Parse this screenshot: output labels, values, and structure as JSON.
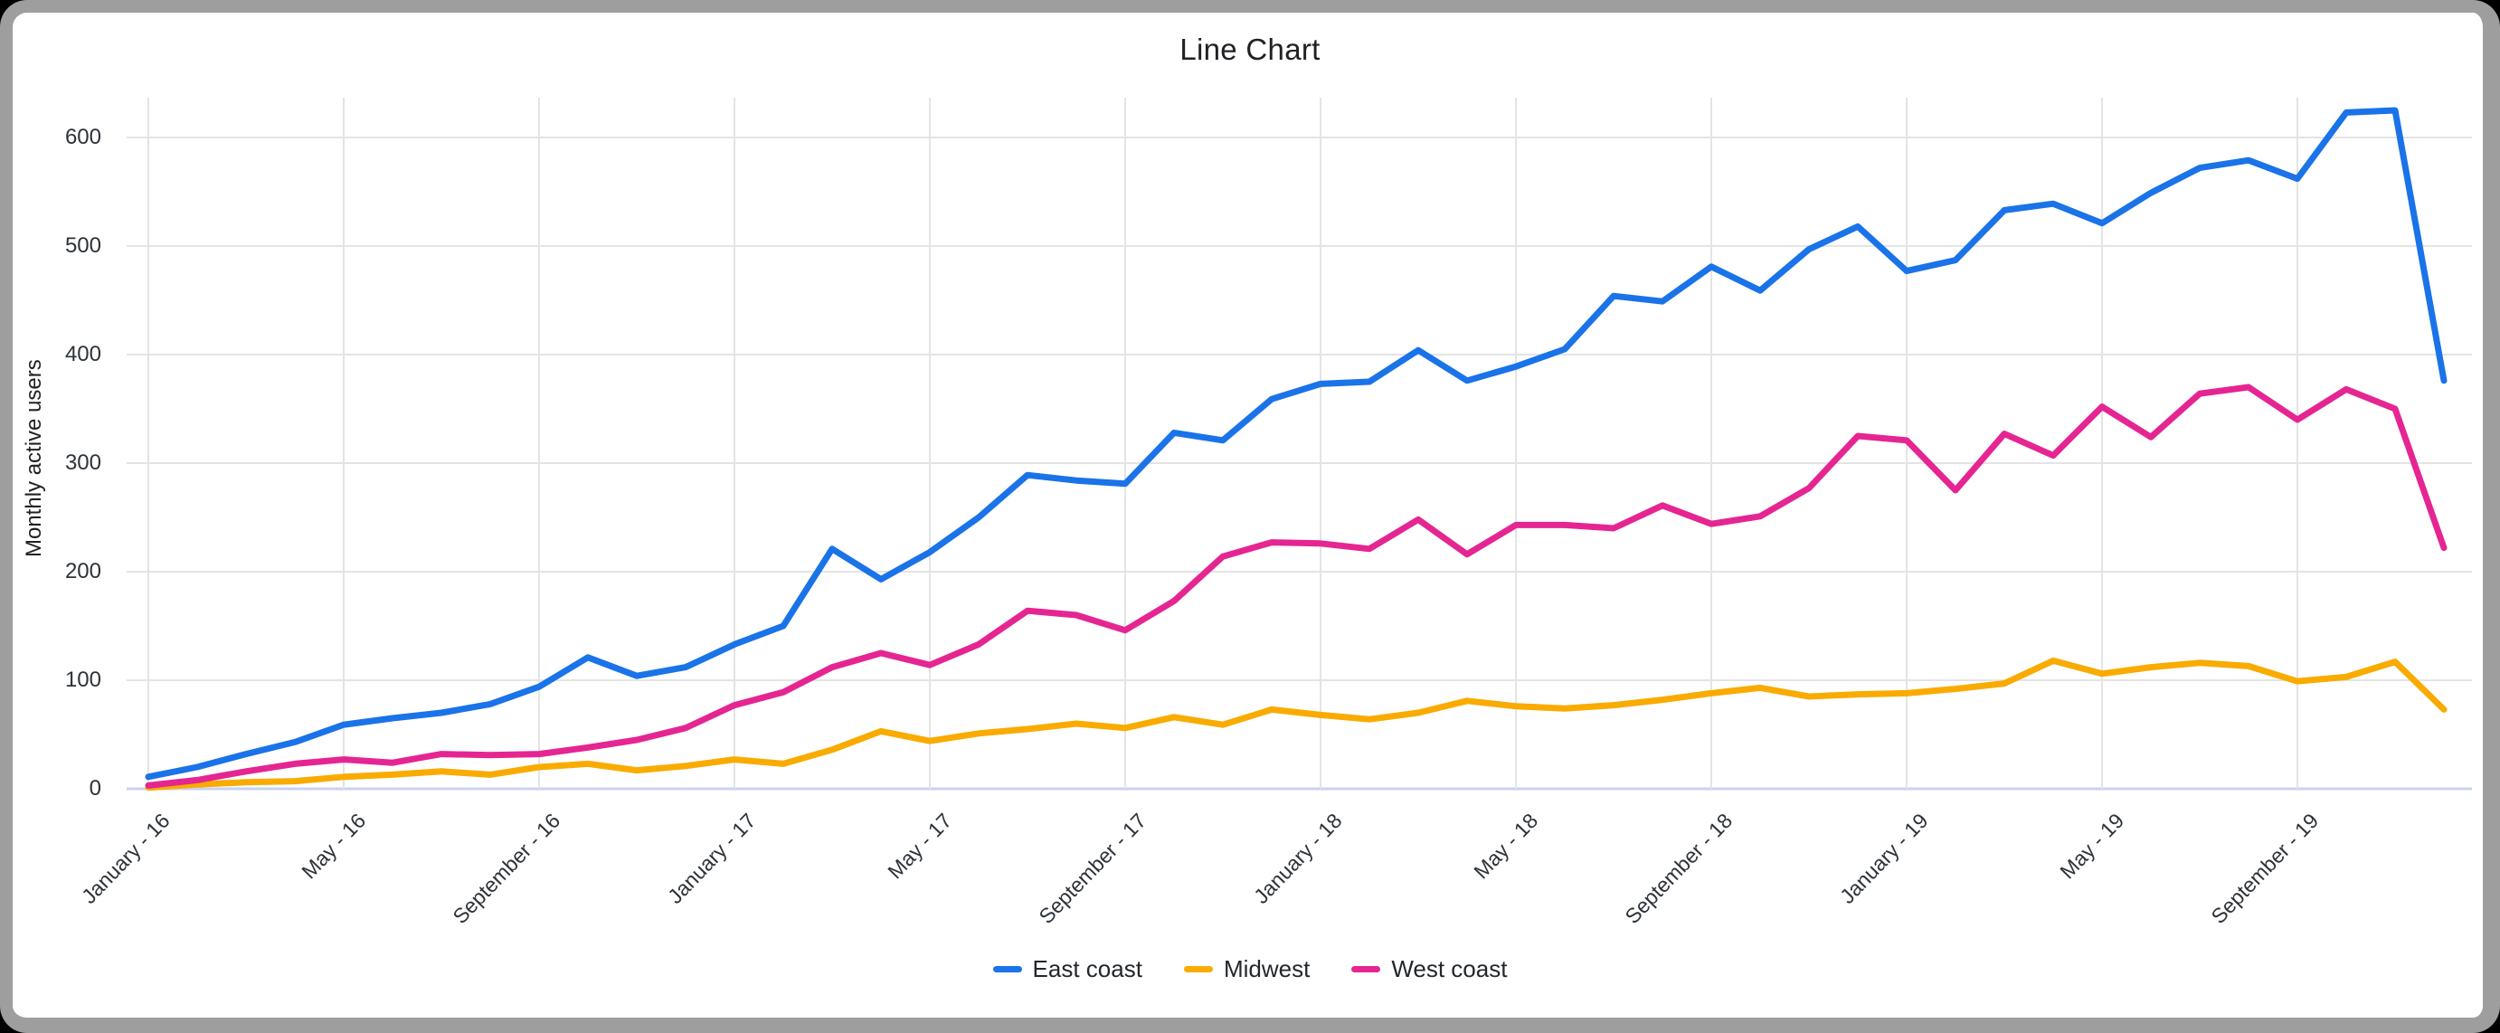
{
  "frame": {
    "page_background": "#000000",
    "card_background": "#ffffff",
    "border_color": "#9e9e9e"
  },
  "chart_data": {
    "type": "line",
    "title": "Line Chart",
    "xlabel": "",
    "ylabel": "Monthly active users",
    "legend_position": "bottom",
    "grid": true,
    "grid_color": "#e4e4e4",
    "baseline_color": "#c8d3ec",
    "ylim": [
      0,
      640
    ],
    "y_ticks": [
      0,
      100,
      200,
      300,
      400,
      500,
      600
    ],
    "x_tick_labels": [
      "January - 16",
      "May - 16",
      "September - 16",
      "January - 17",
      "May - 17",
      "September - 17",
      "January - 18",
      "May - 18",
      "September - 18",
      "January - 19",
      "May - 19",
      "September - 19"
    ],
    "categories": [
      "January - 16",
      "February - 16",
      "March - 16",
      "April - 16",
      "May - 16",
      "June - 16",
      "July - 16",
      "August - 16",
      "September - 16",
      "October - 16",
      "November - 16",
      "December - 16",
      "January - 17",
      "February - 17",
      "March - 17",
      "April - 17",
      "May - 17",
      "June - 17",
      "July - 17",
      "August - 17",
      "September - 17",
      "October - 17",
      "November - 17",
      "December - 17",
      "January - 18",
      "February - 18",
      "March - 18",
      "April - 18",
      "May - 18",
      "June - 18",
      "July - 18",
      "August - 18",
      "September - 18",
      "October - 18",
      "November - 18",
      "December - 18",
      "January - 19",
      "February - 19",
      "March - 19",
      "April - 19",
      "May - 19",
      "June - 19",
      "July - 19",
      "August - 19",
      "September - 19",
      "October - 19",
      "November - 19",
      "December - 19"
    ],
    "series": [
      {
        "name": "East coast",
        "color": "#1a73e8",
        "values": [
          11,
          20,
          32,
          43,
          59,
          65,
          70,
          78,
          94,
          121,
          104,
          112,
          133,
          150,
          221,
          193,
          218,
          250,
          289,
          284,
          281,
          328,
          321,
          359,
          373,
          375,
          404,
          376,
          389,
          405,
          454,
          449,
          481,
          459,
          497,
          518,
          477,
          487,
          533,
          539,
          521,
          549,
          572,
          579,
          562,
          623,
          625,
          376
        ]
      },
      {
        "name": "Midwest",
        "color": "#f9ab00",
        "values": [
          1,
          4,
          6,
          7,
          11,
          13,
          16,
          13,
          20,
          23,
          17,
          21,
          27,
          23,
          36,
          53,
          44,
          51,
          55,
          60,
          56,
          66,
          59,
          73,
          68,
          64,
          70,
          81,
          76,
          74,
          77,
          82,
          88,
          93,
          85,
          87,
          88,
          92,
          97,
          118,
          106,
          112,
          116,
          113,
          99,
          103,
          117,
          73
        ]
      },
      {
        "name": "West coast",
        "color": "#e52592",
        "values": [
          3,
          8,
          16,
          23,
          27,
          24,
          32,
          31,
          32,
          38,
          45,
          56,
          77,
          89,
          112,
          125,
          114,
          133,
          164,
          160,
          146,
          173,
          214,
          227,
          226,
          221,
          248,
          216,
          243,
          243,
          240,
          261,
          244,
          251,
          277,
          325,
          321,
          275,
          327,
          307,
          352,
          324,
          364,
          370,
          340,
          368,
          350,
          222
        ]
      }
    ]
  }
}
